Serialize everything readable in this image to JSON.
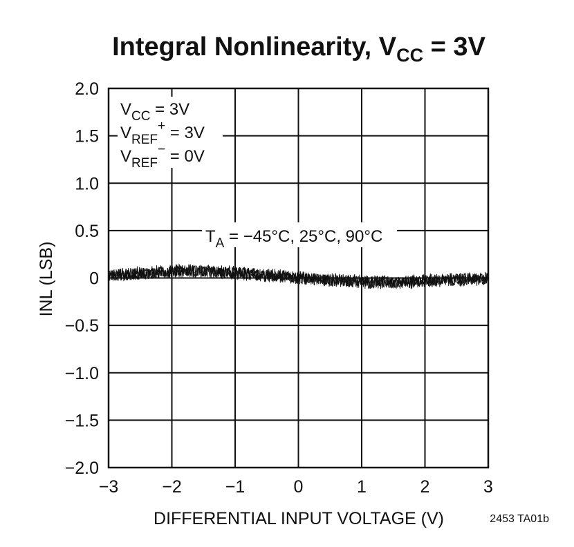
{
  "chart_data": {
    "type": "line",
    "title": {
      "main": "Integral Nonlinearity, V",
      "sub": "CC",
      "rest": " = 3V"
    },
    "xlabel": "DIFFERENTIAL INPUT VOLTAGE (V)",
    "ylabel": "INL (LSB)",
    "xlim": [
      -3,
      3
    ],
    "ylim": [
      -2.0,
      2.0
    ],
    "grid": true,
    "x_ticks": [
      {
        "value": -3,
        "label": "−3"
      },
      {
        "value": -2,
        "label": "−2"
      },
      {
        "value": -1,
        "label": "−1"
      },
      {
        "value": 0,
        "label": "0"
      },
      {
        "value": 1,
        "label": "1"
      },
      {
        "value": 2,
        "label": "2"
      },
      {
        "value": 3,
        "label": "3"
      }
    ],
    "y_ticks": [
      {
        "value": 2.0,
        "label": "2.0"
      },
      {
        "value": 1.5,
        "label": "1.5"
      },
      {
        "value": 1.0,
        "label": "1.0"
      },
      {
        "value": 0.5,
        "label": "0.5"
      },
      {
        "value": 0,
        "label": "0"
      },
      {
        "value": -0.5,
        "label": "−0.5"
      },
      {
        "value": -1.0,
        "label": "−1.0"
      },
      {
        "value": -1.5,
        "label": "−1.5"
      },
      {
        "value": -2.0,
        "label": "−2.0"
      }
    ],
    "conditions": [
      {
        "main": "V",
        "sub": "CC",
        "sup": "",
        "rest": " = 3V"
      },
      {
        "main": "V",
        "sub": "REF",
        "sup": "+",
        "rest": " = 3V"
      },
      {
        "main": "V",
        "sub": "REF",
        "sup": "−",
        "rest": " = 0V"
      }
    ],
    "temperature_annotation": {
      "main": "T",
      "sub": "A",
      "rest": " = −45°C, 25°C, 90°C"
    },
    "series": [
      {
        "name": "-45°C, 25°C, 90°C (overlaid)",
        "x": [
          -3.0,
          -2.75,
          -2.5,
          -2.25,
          -2.0,
          -1.75,
          -1.5,
          -1.25,
          -1.0,
          -0.75,
          -0.5,
          -0.25,
          0.0,
          0.25,
          0.5,
          0.75,
          1.0,
          1.25,
          1.5,
          1.75,
          2.0,
          2.25,
          2.5,
          2.75,
          3.0
        ],
        "y": [
          0.02,
          0.04,
          0.05,
          0.06,
          0.07,
          0.08,
          0.07,
          0.06,
          0.05,
          0.04,
          0.03,
          0.02,
          0.0,
          -0.01,
          -0.02,
          -0.03,
          -0.04,
          -0.04,
          -0.05,
          -0.04,
          -0.03,
          -0.02,
          -0.02,
          -0.01,
          -0.01
        ],
        "noise_band": 0.08
      }
    ],
    "figure_id": "2453 TA01b"
  }
}
